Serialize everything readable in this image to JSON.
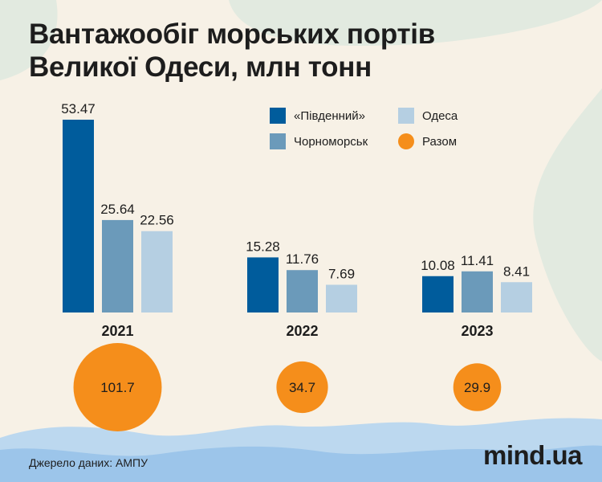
{
  "title_lines": [
    "Вантажообіг морських портів",
    "Великої Одеси, млн тонн"
  ],
  "legend": [
    {
      "label": "«Південний»",
      "kind": "bar"
    },
    {
      "label": "Одеса",
      "kind": "bar"
    },
    {
      "label": "Чорноморськ",
      "kind": "bar"
    },
    {
      "label": "Разом",
      "kind": "circle"
    }
  ],
  "source": "Джерело даних: АМПУ",
  "logo": "mind.ua",
  "colors": {
    "background": "#f7f1e6",
    "pivdennyi": "#005c9c",
    "chornomorsk": "#6b9aba",
    "odesa": "#b5cfe2",
    "total": "#f58e1b",
    "decor_green": "#e2eae0",
    "water_light": "#bcd8ef",
    "water_mid": "#9cc5ea"
  },
  "chart_data": {
    "type": "bar",
    "title": "Вантажообіг морських портів Великої Одеси, млн тонн",
    "categories": [
      "2021",
      "2022",
      "2023"
    ],
    "series": [
      {
        "name": "«Південний»",
        "values": [
          53.47,
          15.28,
          10.08
        ],
        "labels": [
          "53.47",
          "15.28",
          "10.08"
        ]
      },
      {
        "name": "Чорноморськ",
        "values": [
          25.64,
          11.76,
          11.41
        ],
        "labels": [
          "25.64",
          "11.76",
          "11.41"
        ]
      },
      {
        "name": "Одеса",
        "values": [
          22.56,
          7.69,
          8.41
        ],
        "labels": [
          "22.56",
          "7.69",
          "8.41"
        ]
      }
    ],
    "totals": {
      "name": "Разом",
      "values": [
        101.7,
        34.7,
        29.9
      ],
      "labels": [
        "101.7",
        "34.7",
        "29.9"
      ]
    },
    "xlabel": "",
    "ylabel": "",
    "legend_position": "top-right",
    "grid": false
  }
}
